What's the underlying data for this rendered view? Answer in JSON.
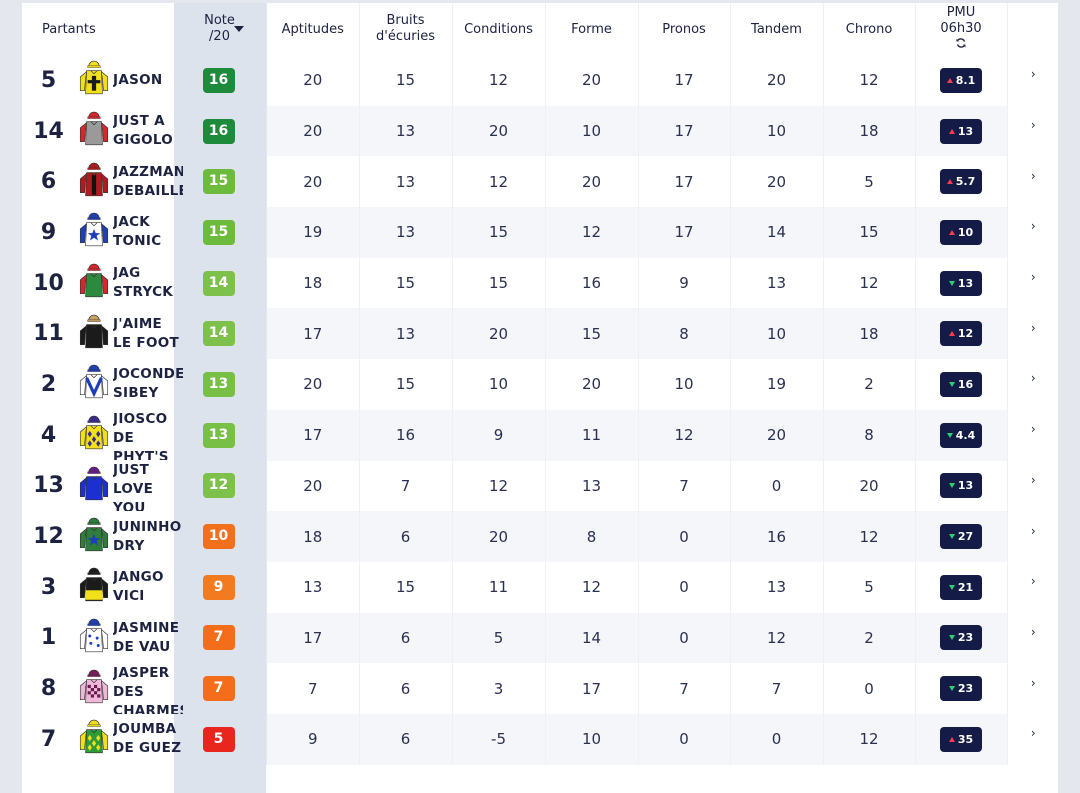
{
  "header": {
    "partants": "Partants",
    "note_line1": "Note",
    "note_line2": "/20",
    "aptitudes": "Aptitudes",
    "bruits_line1": "Bruits",
    "bruits_line2": "d'écuries",
    "conditions": "Conditions",
    "forme": "Forme",
    "pronos": "Pronos",
    "tandem": "Tandem",
    "chrono": "Chrono",
    "pmu_line1": "PMU",
    "pmu_line2": "06h30"
  },
  "colors": {
    "note_16": "#1e8a3c",
    "note_15": "#6cbb3c",
    "note_13": "#78bf45",
    "note_12": "#7dc04a",
    "note_10": "#f26f1c",
    "note_9": "#f47a1f",
    "note_7": "#f36d1b",
    "note_5": "#e8261e",
    "cote_bg": "#141b46",
    "trend_up": "#ff3b4e",
    "trend_down": "#2fd070"
  },
  "rows": [
    {
      "num": "5",
      "name": "JASON",
      "note": "16",
      "note_color": "#1e8a3c",
      "aptitudes": "20",
      "bruits": "15",
      "conditions": "12",
      "forme": "20",
      "pronos": "17",
      "tandem": "20",
      "chrono": "12",
      "cote": "8.1",
      "trend": "up",
      "silk": "yellow-cross"
    },
    {
      "num": "14",
      "name": "JUST A GIGOLO",
      "note": "16",
      "note_color": "#1e8a3c",
      "aptitudes": "20",
      "bruits": "13",
      "conditions": "20",
      "forme": "10",
      "pronos": "17",
      "tandem": "10",
      "chrono": "18",
      "cote": "13",
      "trend": "up",
      "silk": "grey-red"
    },
    {
      "num": "6",
      "name": "JAZZMAN DEBAILLEUL",
      "note": "15",
      "note_color": "#6cbb3c",
      "aptitudes": "20",
      "bruits": "13",
      "conditions": "12",
      "forme": "20",
      "pronos": "17",
      "tandem": "20",
      "chrono": "5",
      "cote": "5.7",
      "trend": "up",
      "silk": "red-black"
    },
    {
      "num": "9",
      "name": "JACK TONIC",
      "note": "15",
      "note_color": "#6cbb3c",
      "aptitudes": "19",
      "bruits": "13",
      "conditions": "15",
      "forme": "12",
      "pronos": "17",
      "tandem": "14",
      "chrono": "15",
      "cote": "10",
      "trend": "up",
      "silk": "blue-star"
    },
    {
      "num": "10",
      "name": "JAG STRYCK",
      "note": "14",
      "note_color": "#7dc04a",
      "aptitudes": "18",
      "bruits": "15",
      "conditions": "15",
      "forme": "16",
      "pronos": "9",
      "tandem": "13",
      "chrono": "12",
      "cote": "13",
      "trend": "down",
      "silk": "green-red"
    },
    {
      "num": "11",
      "name": "J'AIME LE FOOT",
      "note": "14",
      "note_color": "#7dc04a",
      "aptitudes": "17",
      "bruits": "13",
      "conditions": "20",
      "forme": "15",
      "pronos": "8",
      "tandem": "10",
      "chrono": "18",
      "cote": "12",
      "trend": "up",
      "silk": "black-gold"
    },
    {
      "num": "2",
      "name": "JOCONDE SIBEY",
      "note": "13",
      "note_color": "#78bf45",
      "aptitudes": "20",
      "bruits": "15",
      "conditions": "10",
      "forme": "20",
      "pronos": "10",
      "tandem": "19",
      "chrono": "2",
      "cote": "16",
      "trend": "down",
      "silk": "white-blue-v"
    },
    {
      "num": "4",
      "name": "JIOSCO DE PHYT'S",
      "note": "13",
      "note_color": "#78bf45",
      "aptitudes": "17",
      "bruits": "16",
      "conditions": "9",
      "forme": "11",
      "pronos": "12",
      "tandem": "20",
      "chrono": "8",
      "cote": "4.4",
      "trend": "down",
      "silk": "yellow-diamonds"
    },
    {
      "num": "13",
      "name": "JUST LOVE YOU",
      "note": "12",
      "note_color": "#7dc04a",
      "aptitudes": "20",
      "bruits": "7",
      "conditions": "12",
      "forme": "13",
      "pronos": "7",
      "tandem": "0",
      "chrono": "20",
      "cote": "13",
      "trend": "down",
      "silk": "blue-purple"
    },
    {
      "num": "12",
      "name": "JUNINHO DRY",
      "note": "10",
      "note_color": "#f26f1c",
      "aptitudes": "18",
      "bruits": "6",
      "conditions": "20",
      "forme": "8",
      "pronos": "0",
      "tandem": "16",
      "chrono": "12",
      "cote": "27",
      "trend": "down",
      "silk": "green-star"
    },
    {
      "num": "3",
      "name": "JANGO VICI",
      "note": "9",
      "note_color": "#f47a1f",
      "aptitudes": "13",
      "bruits": "15",
      "conditions": "11",
      "forme": "12",
      "pronos": "0",
      "tandem": "13",
      "chrono": "5",
      "cote": "21",
      "trend": "down",
      "silk": "black-yellow"
    },
    {
      "num": "1",
      "name": "JASMINE DE VAU",
      "note": "7",
      "note_color": "#f36d1b",
      "aptitudes": "17",
      "bruits": "6",
      "conditions": "5",
      "forme": "14",
      "pronos": "0",
      "tandem": "12",
      "chrono": "2",
      "cote": "23",
      "trend": "down",
      "silk": "white-blue"
    },
    {
      "num": "8",
      "name": "JASPER DES CHARMES",
      "note": "7",
      "note_color": "#f36d1b",
      "aptitudes": "7",
      "bruits": "6",
      "conditions": "3",
      "forme": "17",
      "pronos": "7",
      "tandem": "7",
      "chrono": "0",
      "cote": "23",
      "trend": "down",
      "silk": "pink-check"
    },
    {
      "num": "7",
      "name": "JOUMBA DE GUEZ",
      "note": "5",
      "note_color": "#e8261e",
      "aptitudes": "9",
      "bruits": "6",
      "conditions": "-5",
      "forme": "10",
      "pronos": "0",
      "tandem": "0",
      "chrono": "12",
      "cote": "35",
      "trend": "up",
      "silk": "green-yellow-diamonds"
    }
  ]
}
